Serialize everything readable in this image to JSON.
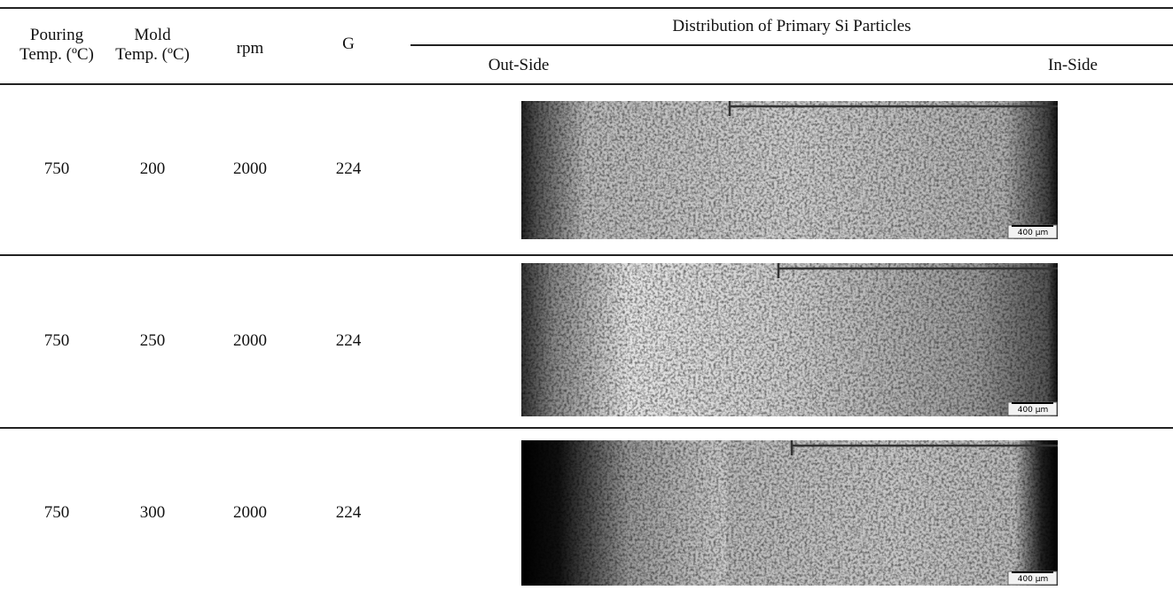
{
  "table": {
    "headers": {
      "pouring": [
        "Pouring",
        "Temp. (ºC)"
      ],
      "mold": [
        "Mold",
        "Temp. (ºC)"
      ],
      "rpm": "rpm",
      "g": "G",
      "distribution": "Distribution of  Primary Si Particles",
      "out_side": "Out-Side",
      "in_side": "In-Side"
    },
    "rows": [
      {
        "pouring_temp": 750,
        "mold_temp": 200,
        "rpm": 2000,
        "g": 224,
        "scale_label": "400 µm"
      },
      {
        "pouring_temp": 750,
        "mold_temp": 250,
        "rpm": 2000,
        "g": 224,
        "scale_label": "400 µm"
      },
      {
        "pouring_temp": 750,
        "mold_temp": 300,
        "rpm": 2000,
        "g": 224,
        "scale_label": "400 µm"
      }
    ]
  }
}
